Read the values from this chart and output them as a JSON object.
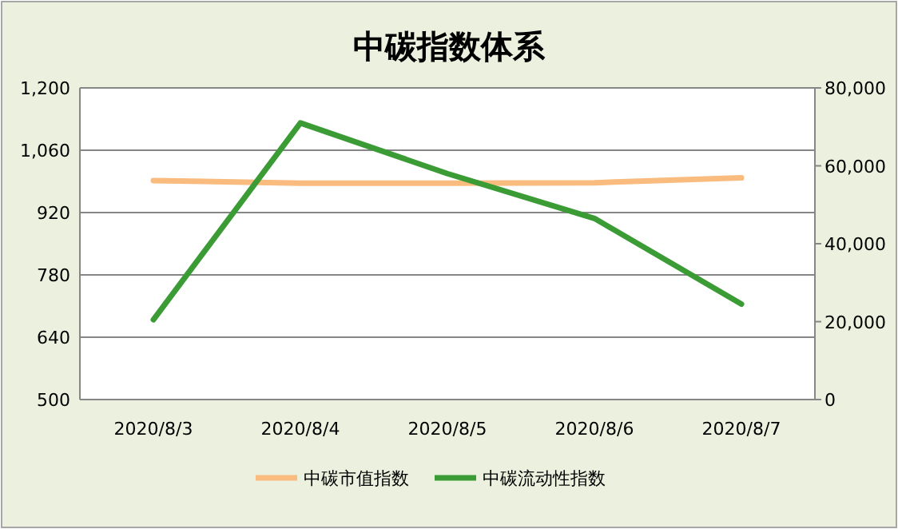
{
  "chart_data": {
    "type": "line",
    "title": "中碳指数体系",
    "categories": [
      "2020/8/3",
      "2020/8/4",
      "2020/8/5",
      "2020/8/6",
      "2020/8/7"
    ],
    "series": [
      {
        "name": "中碳市值指数",
        "color": "#f9bb7e",
        "values": [
          992,
          986,
          986,
          987,
          998
        ]
      },
      {
        "name": "中碳流动性指数",
        "color": "#3b9b35",
        "axis": "y2",
        "values": [
          20500,
          71000,
          58000,
          46500,
          24500
        ]
      }
    ],
    "ylim": [
      500,
      1200
    ],
    "yticks": [
      {
        "value": 500,
        "label": "500"
      },
      {
        "value": 640,
        "label": "640"
      },
      {
        "value": 780,
        "label": "780"
      },
      {
        "value": 920,
        "label": "920"
      },
      {
        "value": 1060,
        "label": "1,060"
      },
      {
        "value": 1200,
        "label": "1,200"
      }
    ],
    "y2lim": [
      0,
      80000
    ],
    "y2ticks": [
      {
        "value": 0,
        "label": "0"
      },
      {
        "value": 20000,
        "label": "20,000"
      },
      {
        "value": 40000,
        "label": "40,000"
      },
      {
        "value": 60000,
        "label": "60,000"
      },
      {
        "value": 80000,
        "label": "80,000"
      }
    ],
    "grid": "y",
    "legend": "bottom",
    "marker": "none",
    "line_style": "solid"
  }
}
